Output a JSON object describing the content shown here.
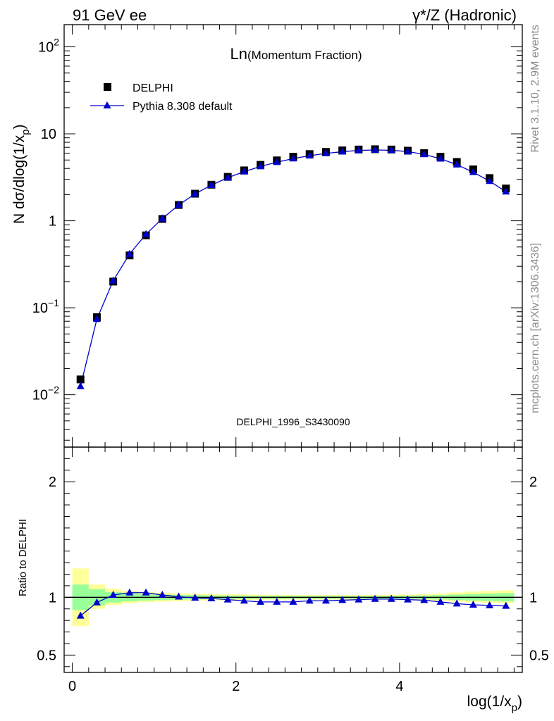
{
  "header": {
    "left": "91 GeV ee",
    "right": "γ*/Z (Hadronic)"
  },
  "side_labels": {
    "rivet": "Rivet 3.1.10,  2.9M events",
    "mcplots": "mcplots.cern.ch [arXiv:1306.3436]"
  },
  "colors": {
    "data": "#000000",
    "mc": "#0000cc",
    "band_inner": "#99ff99",
    "band_outer": "#ffff99",
    "watermark": "#8c8c8c"
  },
  "chart_data": [
    {
      "type": "scatter",
      "title": "Ln(Momentum Fraction)",
      "title_main": "Ln",
      "title_sub": "(Momentum Fraction)",
      "ylabel": "N dσ/dlog(1/x_p)",
      "ylabel_main": "N dσ/dlog(1/x",
      "ylabel_sub": "p",
      "ylabel_close": ")",
      "yscale": "log",
      "xlim": [
        -0.1,
        5.5
      ],
      "ylim": [
        0.0025,
        180
      ],
      "y_ticks": [
        {
          "value": 0.01,
          "base": "10",
          "exp": "−2"
        },
        {
          "value": 0.1,
          "base": "10",
          "exp": "−1"
        },
        {
          "value": 1,
          "base": "1",
          "exp": ""
        },
        {
          "value": 10,
          "base": "10",
          "exp": ""
        },
        {
          "value": 100,
          "base": "10",
          "exp": "2"
        }
      ],
      "watermark": "DELPHI_1996_S3430090",
      "legend_position": "top-left",
      "series": [
        {
          "name": "DELPHI",
          "marker": "square",
          "x": [
            0.1,
            0.3,
            0.5,
            0.7,
            0.9,
            1.1,
            1.3,
            1.5,
            1.7,
            1.9,
            2.1,
            2.3,
            2.5,
            2.7,
            2.9,
            3.1,
            3.3,
            3.5,
            3.7,
            3.9,
            4.1,
            4.3,
            4.5,
            4.7,
            4.9,
            5.1,
            5.3
          ],
          "values": [
            0.015,
            0.078,
            0.2,
            0.4,
            0.68,
            1.05,
            1.52,
            2.05,
            2.6,
            3.2,
            3.8,
            4.4,
            4.95,
            5.45,
            5.85,
            6.2,
            6.45,
            6.6,
            6.65,
            6.6,
            6.4,
            6.0,
            5.45,
            4.75,
            3.9,
            3.1,
            2.35
          ]
        },
        {
          "name": "Pythia 8.308 default",
          "marker": "triangle",
          "x": [
            0.1,
            0.3,
            0.5,
            0.7,
            0.9,
            1.1,
            1.3,
            1.5,
            1.7,
            1.9,
            2.1,
            2.3,
            2.5,
            2.7,
            2.9,
            3.1,
            3.3,
            3.5,
            3.7,
            3.9,
            4.1,
            4.3,
            4.5,
            4.7,
            4.9,
            5.1,
            5.3
          ],
          "values": [
            0.0125,
            0.074,
            0.205,
            0.415,
            0.7,
            1.06,
            1.52,
            2.04,
            2.57,
            3.13,
            3.67,
            4.22,
            4.72,
            5.19,
            5.6,
            5.95,
            6.23,
            6.44,
            6.52,
            6.47,
            6.25,
            5.8,
            5.17,
            4.42,
            3.62,
            2.86,
            2.16
          ]
        }
      ]
    },
    {
      "type": "line",
      "ylabel": "Ratio to DELPHI",
      "xlabel": "log(1/x_p)",
      "xlabel_main": "log(1/x",
      "xlabel_sub": "p",
      "xlabel_close": ")",
      "xlim": [
        -0.1,
        5.5
      ],
      "ylim": [
        0.35,
        2.3
      ],
      "x_ticks": [
        0,
        2,
        4
      ],
      "y_ticks": [
        0.5,
        1,
        2
      ],
      "reference_line": 1,
      "bands": {
        "edges": [
          0.0,
          0.2,
          0.4,
          0.6,
          0.8,
          1.0,
          1.2,
          1.4,
          1.6,
          1.8,
          2.0,
          2.2,
          2.4,
          2.6,
          2.8,
          3.0,
          3.2,
          3.4,
          3.6,
          3.8,
          4.0,
          4.2,
          4.4,
          4.6,
          4.8,
          5.0,
          5.2,
          5.4
        ],
        "inner_low": [
          0.89,
          0.93,
          0.955,
          0.965,
          0.972,
          0.976,
          0.98,
          0.982,
          0.984,
          0.985,
          0.986,
          0.987,
          0.987,
          0.988,
          0.988,
          0.988,
          0.988,
          0.988,
          0.988,
          0.987,
          0.986,
          0.984,
          0.981,
          0.976,
          0.972,
          0.968,
          0.964
        ],
        "inner_high": [
          1.11,
          1.07,
          1.045,
          1.035,
          1.028,
          1.024,
          1.02,
          1.018,
          1.016,
          1.015,
          1.014,
          1.013,
          1.013,
          1.012,
          1.012,
          1.012,
          1.012,
          1.012,
          1.012,
          1.013,
          1.014,
          1.016,
          1.019,
          1.024,
          1.028,
          1.032,
          1.036
        ],
        "outer_low": [
          0.75,
          0.9,
          0.935,
          0.948,
          0.958,
          0.962,
          0.966,
          0.97,
          0.973,
          0.975,
          0.977,
          0.978,
          0.979,
          0.98,
          0.98,
          0.98,
          0.98,
          0.98,
          0.98,
          0.979,
          0.978,
          0.975,
          0.97,
          0.963,
          0.957,
          0.953,
          0.95
        ],
        "outer_high": [
          1.25,
          1.11,
          1.075,
          1.055,
          1.045,
          1.04,
          1.035,
          1.032,
          1.028,
          1.026,
          1.024,
          1.022,
          1.021,
          1.02,
          1.02,
          1.02,
          1.02,
          1.02,
          1.02,
          1.022,
          1.024,
          1.027,
          1.033,
          1.042,
          1.05,
          1.055,
          1.06
        ]
      },
      "series": [
        {
          "name": "Pythia 8.308 default",
          "marker": "triangle",
          "x": [
            0.1,
            0.3,
            0.5,
            0.7,
            0.9,
            1.1,
            1.3,
            1.5,
            1.7,
            1.9,
            2.1,
            2.3,
            2.5,
            2.7,
            2.9,
            3.1,
            3.3,
            3.5,
            3.7,
            3.9,
            4.1,
            4.3,
            4.5,
            4.7,
            4.9,
            5.1,
            5.3
          ],
          "values": [
            0.84,
            0.955,
            1.02,
            1.04,
            1.04,
            1.02,
            1.005,
            0.995,
            0.99,
            0.98,
            0.97,
            0.96,
            0.96,
            0.96,
            0.97,
            0.97,
            0.975,
            0.98,
            0.985,
            0.985,
            0.98,
            0.975,
            0.96,
            0.945,
            0.935,
            0.93,
            0.925
          ]
        }
      ]
    }
  ]
}
